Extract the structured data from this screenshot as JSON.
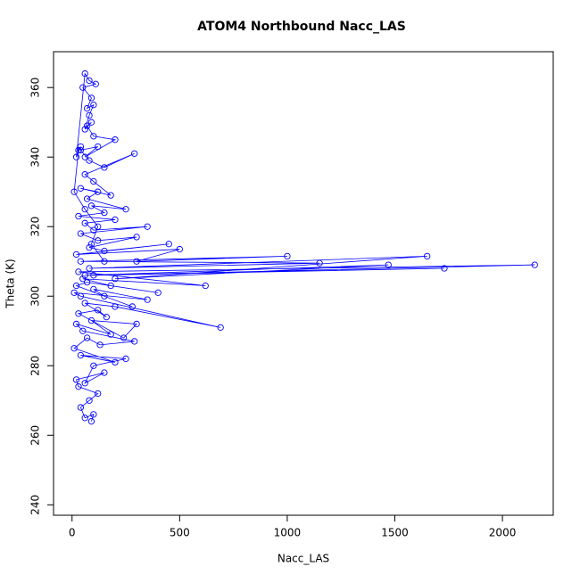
{
  "chart_data": {
    "type": "line",
    "title": "ATOM4 Northbound Nacc_LAS",
    "xlabel": "Nacc_LAS",
    "ylabel": "Theta (K)",
    "color": "#0000ff",
    "marker": "circle",
    "x": [
      90,
      100,
      60,
      40,
      80,
      120,
      30,
      20,
      150,
      60,
      100,
      250,
      40,
      200,
      10,
      70,
      130,
      290,
      50,
      20,
      180,
      90,
      300,
      240,
      30,
      120,
      160,
      60,
      200,
      690,
      40,
      10,
      350,
      100,
      150,
      280,
      20,
      70,
      400,
      180,
      50,
      620,
      30,
      2150,
      100,
      1730,
      60,
      1470,
      200,
      1650,
      80,
      1150,
      40,
      1000,
      300,
      500,
      20,
      450,
      150,
      80,
      300,
      120,
      40,
      350,
      100,
      60,
      200,
      30,
      150,
      90,
      250,
      70,
      120,
      40,
      180,
      100,
      60,
      290,
      150,
      80,
      40,
      120,
      60,
      200,
      100,
      70,
      90,
      60,
      80,
      100,
      70,
      90,
      50,
      110,
      80,
      60,
      20,
      40,
      30,
      10,
      60,
      120,
      90,
      150
    ],
    "values": [
      264,
      266,
      265,
      268,
      270,
      272,
      274,
      276,
      278,
      275,
      280,
      282,
      283,
      281,
      285,
      288,
      286,
      287,
      290,
      292,
      289,
      293,
      292,
      288,
      295,
      296,
      294,
      298,
      297,
      291,
      300,
      301,
      299,
      302,
      300,
      297,
      303,
      304,
      301,
      303,
      305,
      303,
      307,
      309,
      306,
      308,
      306,
      309,
      305,
      311.5,
      308,
      309.5,
      310,
      311.5,
      310,
      313.5,
      312,
      315,
      313,
      314,
      317,
      316,
      318,
      320,
      319,
      321,
      322,
      323,
      324,
      326,
      325,
      328,
      330,
      331,
      329,
      333,
      335,
      341,
      337,
      339,
      342,
      343,
      340,
      345,
      346,
      349,
      350,
      348,
      352,
      355,
      354,
      357,
      360,
      361,
      362,
      364,
      340,
      343,
      342,
      330,
      325,
      320,
      315,
      310
    ],
    "xlim": [
      -86,
      2236
    ],
    "xticks": [
      0,
      500,
      1000,
      1500,
      2000
    ],
    "ylim": [
      237,
      370.3
    ],
    "yticks": [
      240,
      260,
      280,
      300,
      320,
      340,
      360
    ]
  }
}
